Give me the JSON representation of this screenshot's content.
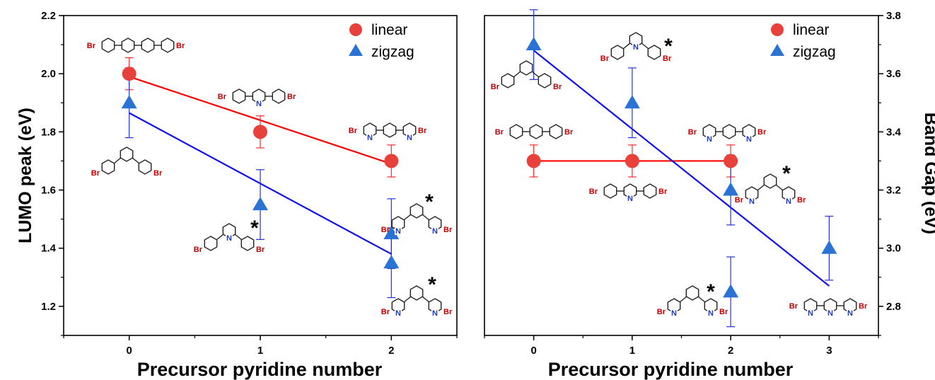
{
  "colors": {
    "linear": "#e8403a",
    "zigzag": "#2a73d4",
    "fit_linear": "#ff0000",
    "fit_zigzag": "#1111ee",
    "err_linear": "#ff2a2a",
    "err_zigzag": "#2233dd",
    "br": "#c00000",
    "n": "#1a39c8"
  },
  "chart_data": [
    {
      "type": "scatter",
      "xlabel": "Precursor pyridine number",
      "ylabel": "LUMO peak (eV)",
      "xlim": [
        -0.5,
        2.5
      ],
      "ylim": [
        1.1,
        2.2
      ],
      "xticks": [
        "0",
        "1",
        "2"
      ],
      "yticks": [
        "1.2",
        "1.4",
        "1.6",
        "1.8",
        "2.0",
        "2.2"
      ],
      "legend": "top-right",
      "series": [
        {
          "name": "linear",
          "marker": "circle",
          "x": [
            0,
            1,
            2
          ],
          "y": [
            2.0,
            1.8,
            1.7
          ],
          "err": [
            0.055,
            0.055,
            0.055
          ],
          "fit": [
            [
              0,
              1.99
            ],
            [
              2,
              1.69
            ]
          ]
        },
        {
          "name": "zigzag",
          "marker": "triangle",
          "x": [
            0,
            1,
            2,
            2
          ],
          "y": [
            1.9,
            1.55,
            1.45,
            1.35
          ],
          "err": [
            0.12,
            0.12,
            0.12,
            0.12
          ],
          "fit": [
            [
              0,
              1.865
            ],
            [
              2,
              1.38
            ]
          ]
        }
      ],
      "annotations": [
        {
          "mol": "dibromo-terphenyl",
          "br": [
            "Br",
            "Br"
          ]
        },
        {
          "mol": "dibromo-m-terphenyl",
          "br": [
            "Br",
            "Br"
          ]
        },
        {
          "mol": "bromophenyl-pyridine",
          "n": "N",
          "br": [
            "Br",
            "Br"
          ]
        },
        {
          "mol": "bromopyridyl-benzene",
          "n": [
            "N",
            "N"
          ],
          "br": [
            "Br",
            "Br"
          ],
          "star": "*"
        },
        {
          "mol": "pyridyl-meta",
          "n": [
            "N",
            "N"
          ],
          "br": [
            "Br",
            "Br"
          ],
          "star": "*"
        },
        {
          "mol": "pyridyl-meta-2",
          "n": [
            "N",
            "N"
          ],
          "br": [
            "Br",
            "Br"
          ],
          "star": "*"
        },
        {
          "mol": "pyridine-meta",
          "n": "N",
          "br": [
            "Br",
            "Br"
          ],
          "star": "*"
        }
      ]
    },
    {
      "type": "scatter",
      "xlabel": "Precursor pyridine number",
      "ylabel": "Band Gap (eV)",
      "xlim": [
        -0.5,
        3.5
      ],
      "ylim": [
        2.7,
        3.8
      ],
      "xticks": [
        "0",
        "1",
        "2",
        "3"
      ],
      "yticks": [
        "2.8",
        "3.0",
        "3.2",
        "3.4",
        "3.6",
        "3.8"
      ],
      "legend": "top-right",
      "series": [
        {
          "name": "linear",
          "marker": "circle",
          "x": [
            0,
            1,
            2
          ],
          "y": [
            3.3,
            3.3,
            3.3
          ],
          "err": [
            0.055,
            0.055,
            0.055
          ],
          "fit": [
            [
              0,
              3.3
            ],
            [
              2,
              3.3
            ]
          ]
        },
        {
          "name": "zigzag",
          "marker": "triangle",
          "x": [
            0,
            1,
            2,
            2,
            3
          ],
          "y": [
            3.7,
            3.5,
            3.2,
            2.85,
            3.0
          ],
          "err": [
            0.12,
            0.12,
            0.12,
            0.12,
            0.11
          ],
          "fit": [
            [
              0,
              3.68
            ],
            [
              3,
              2.87
            ]
          ]
        }
      ],
      "annotations": [
        {
          "mol": "dibromo-m-terphenyl",
          "br": [
            "Br",
            "Br"
          ]
        },
        {
          "mol": "pyridine-meta",
          "n": "N",
          "br": [
            "Br",
            "Br"
          ],
          "star": "*"
        },
        {
          "mol": "dibromo-terphenyl",
          "br": [
            "Br",
            "Br"
          ]
        },
        {
          "mol": "bromophenyl-pyridine",
          "n": "N",
          "br": [
            "Br",
            "Br"
          ]
        },
        {
          "mol": "bromopyridyl-benzene",
          "n": [
            "N",
            "N"
          ],
          "br": [
            "Br",
            "Br"
          ]
        },
        {
          "mol": "pyridyl-meta",
          "n": [
            "N",
            "N"
          ],
          "br": [
            "Br",
            "Br"
          ],
          "star": "*"
        },
        {
          "mol": "pyridyl-meta-2",
          "n": [
            "N",
            "N"
          ],
          "br": [
            "Br",
            "Br"
          ],
          "star": "*"
        },
        {
          "mol": "terpyridine",
          "n": [
            "N",
            "N",
            "N"
          ],
          "br": [
            "Br",
            "Br"
          ]
        }
      ]
    }
  ]
}
